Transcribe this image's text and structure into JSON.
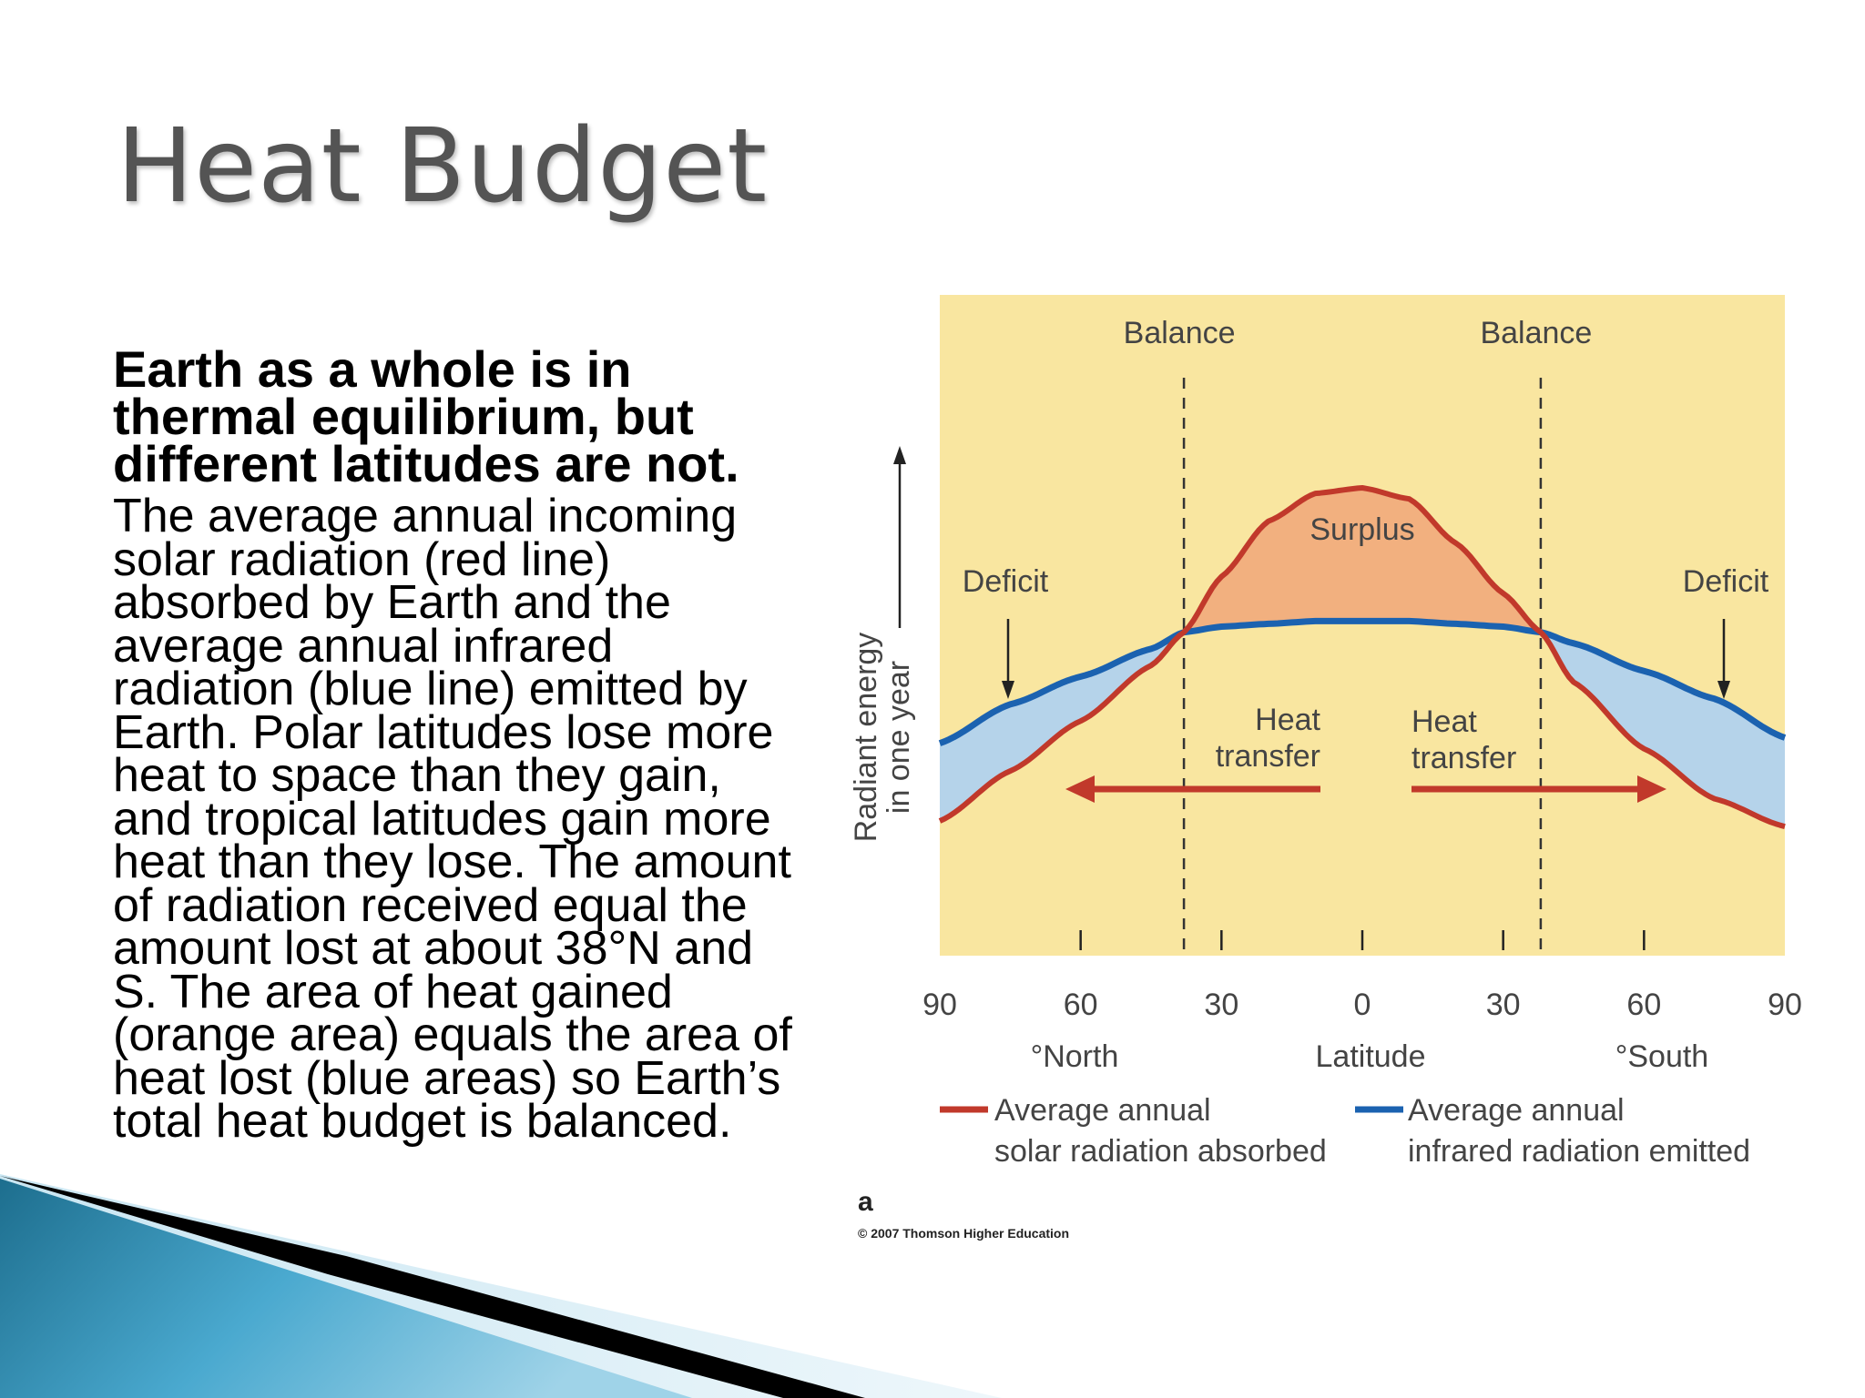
{
  "slide": {
    "title": "Heat Budget",
    "lead": "Earth as a whole is in thermal equilibrium, but different latitudes are not.",
    "body": "The average annual incoming solar radiation (red line) absorbed by Earth and the average annual infrared radiation (blue line) emitted by Earth. Polar latitudes lose more heat to space than they gain, and tropical latitudes gain more heat than they lose. The amount of radiation received equal the amount lost at about 38°N and S. The area of heat gained (orange area) equals the area of heat lost (blue areas) so Earth’s total heat budget is balanced."
  },
  "colors": {
    "background": "#f9e6a0",
    "solar_line": "#c1392b",
    "infrared_line": "#1b62b0",
    "surplus_fill": "#f2b07f",
    "deficit_fill": "#b5d3ea",
    "title": "#545454"
  },
  "chart_data": {
    "type": "line",
    "title": "",
    "xlabel": "Latitude",
    "ylabel": "Radiant energy in one year",
    "x_ticks": [
      {
        "lat": -90,
        "label": "90"
      },
      {
        "lat": -60,
        "label": "60"
      },
      {
        "lat": -30,
        "label": "30"
      },
      {
        "lat": 0,
        "label": "0"
      },
      {
        "lat": 30,
        "label": "30"
      },
      {
        "lat": 60,
        "label": "60"
      },
      {
        "lat": 90,
        "label": "90"
      }
    ],
    "x_hemisphere_labels": {
      "north": "°North",
      "south": "°South"
    },
    "xlim": [
      -90,
      90
    ],
    "ylim": [
      0,
      100
    ],
    "series": [
      {
        "name": "Average annual solar radiation absorbed",
        "key": "solar",
        "x": [
          -90,
          -75,
          -60,
          -45,
          -38,
          -30,
          -20,
          -10,
          0,
          10,
          20,
          30,
          38,
          45,
          60,
          75,
          90
        ],
        "y": [
          30,
          39,
          48,
          58,
          64,
          74,
          84,
          89,
          90,
          88,
          80,
          71,
          64,
          55,
          43,
          34,
          29
        ]
      },
      {
        "name": "Average annual infrared radiation emitted",
        "key": "infrared",
        "x": [
          -90,
          -75,
          -60,
          -45,
          -38,
          -30,
          -20,
          -10,
          0,
          10,
          20,
          30,
          38,
          45,
          60,
          75,
          90
        ],
        "y": [
          44,
          51,
          56,
          61,
          64,
          65,
          65.5,
          66,
          66,
          66,
          65.5,
          65,
          64,
          62,
          57,
          52,
          45
        ]
      }
    ],
    "balance_lat": 38,
    "annotations": {
      "balance": "Balance",
      "surplus": "Surplus",
      "deficit": "Deficit",
      "heat_transfer_1": "Heat",
      "heat_transfer_2": "transfer"
    },
    "legend": {
      "solar_line1": "Average annual",
      "solar_line2": "solar radiation absorbed",
      "infrared_line1": "Average annual",
      "infrared_line2": "infrared radiation emitted"
    },
    "panel_label": "a",
    "copyright": "© 2007 Thomson Higher Education"
  }
}
